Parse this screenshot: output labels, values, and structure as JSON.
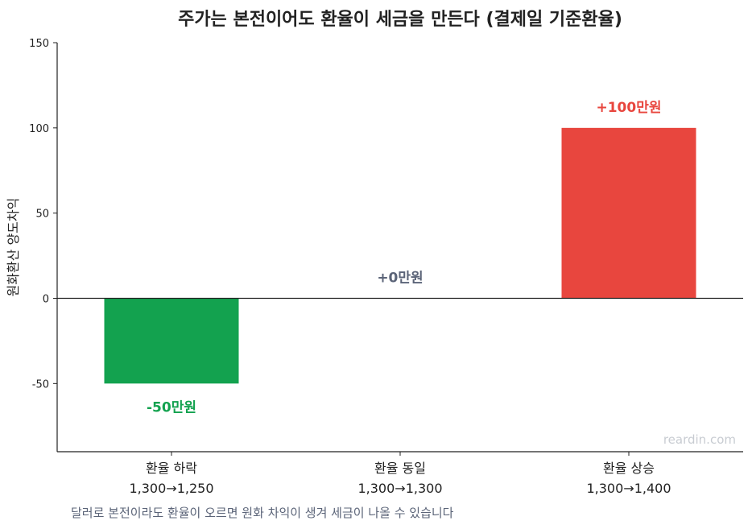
{
  "chart_data": {
    "type": "bar",
    "title": "주가는 본전이어도 환율이 세금을 만든다 (결제일 기준환율)",
    "ylabel": "원화환산 양도차익",
    "xlabel": "",
    "ylim": [
      -90,
      150
    ],
    "yticks": [
      -50,
      0,
      50,
      100,
      150
    ],
    "grid": false,
    "categories": [
      {
        "line1": "환율 하락",
        "line2": "1,300→1,250"
      },
      {
        "line1": "환율 동일",
        "line2": "1,300→1,300"
      },
      {
        "line1": "환율 상승",
        "line2": "1,300→1,400"
      }
    ],
    "values": [
      -50,
      0,
      100
    ],
    "value_labels": [
      "-50만원",
      "+0만원",
      "+100만원"
    ],
    "colors": [
      "#13a24f",
      "#5b6478",
      "#e8463e"
    ],
    "label_colors": [
      "#13a24f",
      "#5b6478",
      "#e8463e"
    ],
    "zero_line_color": "#222222"
  },
  "footnote": "달러로 본전이라도 환율이 오르면 원화 차익이 생겨 세금이 나올 수 있습니다",
  "watermark": "reardin.com"
}
